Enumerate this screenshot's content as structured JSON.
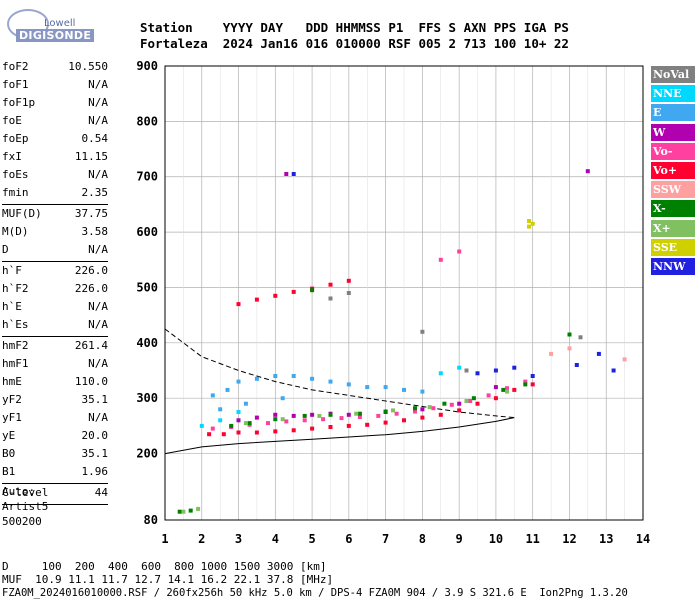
{
  "logo": {
    "line1": "Lowell",
    "line2": "DIGISONDE"
  },
  "header": {
    "row1": "Station    YYYY DAY   DDD HHMMSS P1  FFS S AXN PPS IGA PS",
    "row2": "Fortaleza  2024 Jan16 016 010000 RSF 005 2 713 100 10+ 22"
  },
  "params": [
    {
      "name": "foF2",
      "value": "10.550"
    },
    {
      "name": "foF1",
      "value": "N/A"
    },
    {
      "name": "foF1p",
      "value": "N/A"
    },
    {
      "name": "foE",
      "value": "N/A"
    },
    {
      "name": "foEp",
      "value": "0.54"
    },
    {
      "name": "fxI",
      "value": "11.15"
    },
    {
      "name": "foEs",
      "value": "N/A"
    },
    {
      "name": "fmin",
      "value": "2.35"
    },
    {
      "sep": true
    },
    {
      "name": "MUF(D)",
      "value": "37.75"
    },
    {
      "name": "M(D)",
      "value": "3.58"
    },
    {
      "name": "D",
      "value": "N/A"
    },
    {
      "sep": true
    },
    {
      "name": "h`F",
      "value": "226.0"
    },
    {
      "name": "h`F2",
      "value": "226.0"
    },
    {
      "name": "h`E",
      "value": "N/A"
    },
    {
      "name": "h`Es",
      "value": "N/A"
    },
    {
      "sep": true
    },
    {
      "name": "hmF2",
      "value": "261.4"
    },
    {
      "name": "hmF1",
      "value": "N/A"
    },
    {
      "name": "hmE",
      "value": "110.0"
    },
    {
      "name": "yF2",
      "value": "35.1"
    },
    {
      "name": "yF1",
      "value": "N/A"
    },
    {
      "name": "yE",
      "value": "20.0"
    },
    {
      "name": "B0",
      "value": "35.1"
    },
    {
      "name": "B1",
      "value": "1.96"
    },
    {
      "sep": true
    },
    {
      "name": "C-level",
      "value": "44"
    },
    {
      "sep": true
    }
  ],
  "auto": {
    "label": "Auto:",
    "program": "Artist5",
    "version": "500200"
  },
  "legend": [
    {
      "label": "NoVal",
      "color": "#808080"
    },
    {
      "label": "NNE",
      "color": "#00d8ff"
    },
    {
      "label": "E",
      "color": "#40a8f0"
    },
    {
      "label": "W",
      "color": "#b000b0"
    },
    {
      "label": "Vo-",
      "color": "#ff40a0"
    },
    {
      "label": "Vo+",
      "color": "#ff0030"
    },
    {
      "label": "SSW",
      "color": "#ffa0a0"
    },
    {
      "label": "X-",
      "color": "#008000"
    },
    {
      "label": "X+",
      "color": "#80c060"
    },
    {
      "label": "SSE",
      "color": "#d0d000"
    },
    {
      "label": "NNW",
      "color": "#2020e0"
    }
  ],
  "footer": {
    "line1": "D     100  200  400  600  800 1000 1500 3000 [km]",
    "line2": "MUF  10.9 11.1 11.7 12.7 14.1 16.2 22.1 37.8 [MHz]",
    "line3": "FZA0M_2024016010000.RSF / 260fx256h 50 kHz 5.0 km / DPS-4 FZA0M 904 / 3.9 S 321.6 E  Ion2Png 1.3.20"
  },
  "chart_data": {
    "type": "scatter",
    "title": "",
    "xlabel": "",
    "ylabel": "",
    "xlim": [
      1,
      14
    ],
    "ylim": [
      80,
      900
    ],
    "x_ticks": [
      "1",
      "2",
      "3",
      "4",
      "5",
      "6",
      "7",
      "8",
      "9",
      "10",
      "11",
      "12",
      "13",
      "14"
    ],
    "y_ticks": [
      "80",
      "200",
      "300",
      "400",
      "500",
      "600",
      "700",
      "800",
      "900"
    ],
    "y_tick_values": [
      80,
      200,
      300,
      400,
      500,
      600,
      700,
      800,
      900
    ],
    "grid": true,
    "series": [
      {
        "name": "E",
        "color": "#40a8f0",
        "points": [
          [
            2.3,
            305
          ],
          [
            2.7,
            315
          ],
          [
            3.0,
            330
          ],
          [
            3.5,
            335
          ],
          [
            4.0,
            340
          ],
          [
            4.5,
            340
          ],
          [
            5.0,
            335
          ],
          [
            5.5,
            330
          ],
          [
            6.0,
            325
          ],
          [
            6.5,
            320
          ],
          [
            7.0,
            320
          ],
          [
            7.5,
            315
          ],
          [
            8.0,
            312
          ],
          [
            2.5,
            280
          ],
          [
            3.2,
            290
          ],
          [
            4.2,
            300
          ]
        ]
      },
      {
        "name": "Vo+",
        "color": "#ff0030",
        "points": [
          [
            2.2,
            235
          ],
          [
            2.6,
            235
          ],
          [
            3.0,
            238
          ],
          [
            3.5,
            238
          ],
          [
            4.0,
            240
          ],
          [
            4.5,
            242
          ],
          [
            5.0,
            245
          ],
          [
            5.5,
            248
          ],
          [
            6.0,
            250
          ],
          [
            6.5,
            252
          ],
          [
            7.0,
            256
          ],
          [
            7.5,
            260
          ],
          [
            8.0,
            265
          ],
          [
            8.5,
            270
          ],
          [
            9.0,
            278
          ],
          [
            9.5,
            290
          ],
          [
            10.0,
            300
          ],
          [
            10.5,
            315
          ],
          [
            11.0,
            325
          ],
          [
            3.0,
            470
          ],
          [
            3.5,
            478
          ],
          [
            4.0,
            485
          ],
          [
            4.5,
            492
          ],
          [
            5.0,
            498
          ],
          [
            5.5,
            505
          ],
          [
            6.0,
            512
          ]
        ]
      },
      {
        "name": "Vo-",
        "color": "#ff40a0",
        "points": [
          [
            2.3,
            245
          ],
          [
            2.8,
            248
          ],
          [
            3.3,
            252
          ],
          [
            3.8,
            255
          ],
          [
            4.3,
            258
          ],
          [
            4.8,
            260
          ],
          [
            5.3,
            262
          ],
          [
            5.8,
            264
          ],
          [
            6.3,
            266
          ],
          [
            6.8,
            268
          ],
          [
            7.3,
            272
          ],
          [
            7.8,
            276
          ],
          [
            8.3,
            282
          ],
          [
            8.8,
            288
          ],
          [
            9.3,
            295
          ],
          [
            9.8,
            305
          ],
          [
            10.3,
            318
          ],
          [
            10.8,
            330
          ],
          [
            8.5,
            550
          ],
          [
            9.0,
            565
          ]
        ]
      },
      {
        "name": "W",
        "color": "#b000b0",
        "points": [
          [
            3.0,
            260
          ],
          [
            3.5,
            265
          ],
          [
            4.0,
            270
          ],
          [
            4.5,
            268
          ],
          [
            5.0,
            270
          ],
          [
            5.5,
            272
          ],
          [
            6.0,
            270
          ],
          [
            7.0,
            275
          ],
          [
            8.0,
            280
          ],
          [
            9.0,
            290
          ],
          [
            10.0,
            320
          ],
          [
            4.3,
            705
          ],
          [
            12.5,
            710
          ]
        ]
      },
      {
        "name": "X-",
        "color": "#008000",
        "points": [
          [
            2.8,
            250
          ],
          [
            3.3,
            255
          ],
          [
            4.0,
            262
          ],
          [
            4.8,
            268
          ],
          [
            5.5,
            270
          ],
          [
            6.3,
            272
          ],
          [
            7.0,
            276
          ],
          [
            7.8,
            282
          ],
          [
            8.6,
            290
          ],
          [
            9.4,
            300
          ],
          [
            10.2,
            315
          ],
          [
            10.8,
            325
          ],
          [
            5.0,
            495
          ],
          [
            1.4,
            95
          ],
          [
            1.7,
            97
          ],
          [
            12.0,
            415
          ]
        ]
      },
      {
        "name": "X+",
        "color": "#80c060",
        "points": [
          [
            3.2,
            255
          ],
          [
            4.2,
            262
          ],
          [
            5.2,
            268
          ],
          [
            6.2,
            272
          ],
          [
            7.2,
            278
          ],
          [
            8.2,
            284
          ],
          [
            9.2,
            295
          ],
          [
            10.3,
            312
          ],
          [
            1.5,
            95
          ],
          [
            1.9,
            100
          ]
        ]
      },
      {
        "name": "NNE",
        "color": "#00d8ff",
        "points": [
          [
            2.0,
            250
          ],
          [
            2.5,
            260
          ],
          [
            3.0,
            275
          ],
          [
            8.5,
            345
          ],
          [
            9.0,
            355
          ]
        ]
      },
      {
        "name": "NNW",
        "color": "#2020e0",
        "points": [
          [
            9.5,
            345
          ],
          [
            10.0,
            350
          ],
          [
            10.5,
            355
          ],
          [
            11.0,
            340
          ],
          [
            12.2,
            360
          ],
          [
            12.8,
            380
          ],
          [
            4.5,
            705
          ],
          [
            13.2,
            350
          ]
        ]
      },
      {
        "name": "SSW",
        "color": "#ffa0a0",
        "points": [
          [
            11.5,
            380
          ],
          [
            12.0,
            390
          ],
          [
            13.5,
            370
          ]
        ]
      },
      {
        "name": "SSE",
        "color": "#d0d000",
        "points": [
          [
            10.9,
            620
          ],
          [
            11.0,
            615
          ],
          [
            10.9,
            610
          ]
        ]
      },
      {
        "name": "NoVal",
        "color": "#808080",
        "points": [
          [
            5.5,
            480
          ],
          [
            6.0,
            490
          ],
          [
            12.3,
            410
          ],
          [
            8.0,
            420
          ],
          [
            9.2,
            350
          ]
        ]
      }
    ],
    "profile_dashed": [
      [
        1.0,
        425
      ],
      [
        1.5,
        400
      ],
      [
        2.0,
        375
      ],
      [
        3.0,
        350
      ],
      [
        4.0,
        330
      ],
      [
        5.0,
        315
      ],
      [
        6.0,
        305
      ],
      [
        7.0,
        295
      ],
      [
        8.0,
        285
      ],
      [
        9.0,
        275
      ],
      [
        10.0,
        268
      ],
      [
        10.5,
        265
      ]
    ],
    "profile_solid": [
      [
        1.0,
        200
      ],
      [
        2.0,
        212
      ],
      [
        3.0,
        218
      ],
      [
        4.0,
        222
      ],
      [
        5.0,
        226
      ],
      [
        6.0,
        230
      ],
      [
        7.0,
        234
      ],
      [
        8.0,
        240
      ],
      [
        9.0,
        248
      ],
      [
        10.0,
        258
      ],
      [
        10.5,
        265
      ]
    ]
  }
}
